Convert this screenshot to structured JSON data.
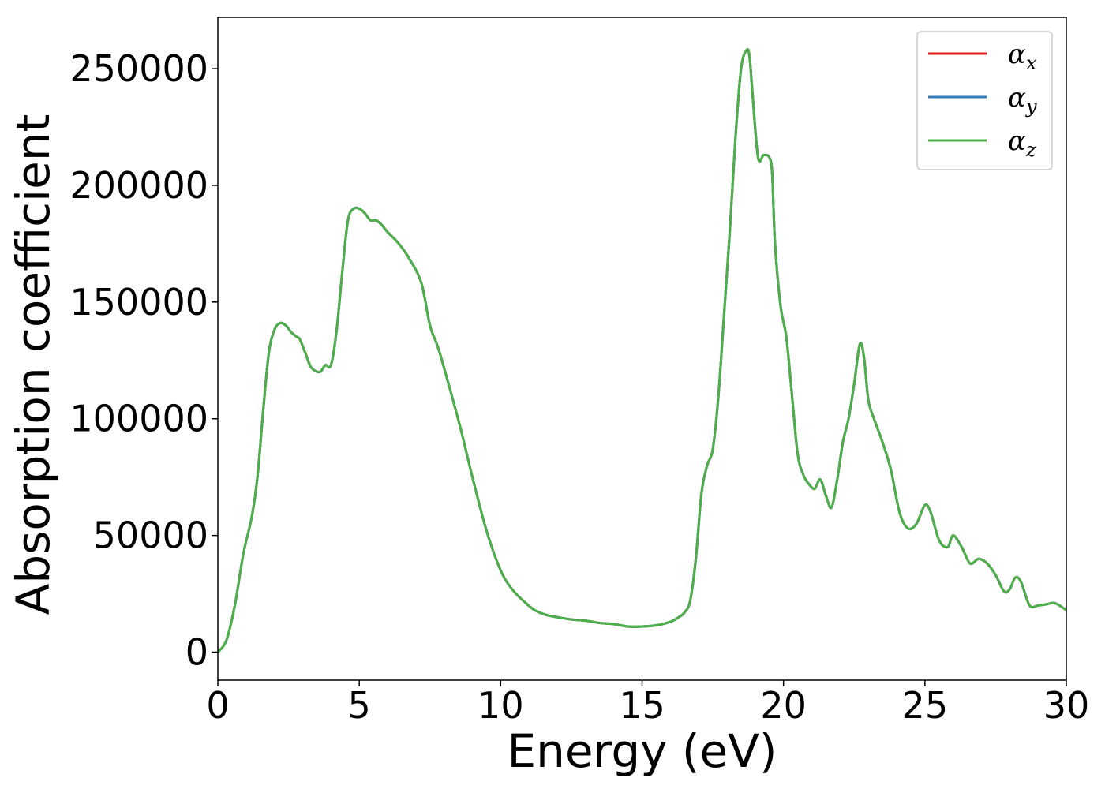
{
  "chart_data": {
    "type": "line",
    "title": "",
    "xlabel": "Energy (eV)",
    "ylabel": "Absorption coefficient",
    "xlim": [
      0,
      30
    ],
    "ylim": [
      -12000,
      272000
    ],
    "xticks": [
      0,
      5,
      10,
      15,
      20,
      25,
      30
    ],
    "yticks": [
      0,
      50000,
      100000,
      150000,
      200000,
      250000
    ],
    "grid": false,
    "legend_position": "top-right",
    "legend": [
      {
        "symbol": "α",
        "sub": "x",
        "color": "#e41a1c"
      },
      {
        "symbol": "α",
        "sub": "y",
        "color": "#377eb8"
      },
      {
        "symbol": "α",
        "sub": "z",
        "color": "#4daf4a"
      }
    ],
    "series": [
      {
        "name": "αx",
        "color": "#e41a1c"
      },
      {
        "name": "αy",
        "color": "#377eb8"
      },
      {
        "name": "αz",
        "color": "#4daf4a"
      }
    ],
    "x": [
      0,
      0.3,
      0.6,
      0.9,
      1.2,
      1.4,
      1.6,
      1.8,
      2.0,
      2.2,
      2.4,
      2.6,
      2.8,
      2.9,
      3.1,
      3.3,
      3.6,
      3.8,
      4.0,
      4.2,
      4.4,
      4.6,
      4.8,
      5.0,
      5.2,
      5.4,
      5.6,
      5.8,
      6.0,
      6.4,
      6.8,
      7.2,
      7.5,
      7.8,
      8.2,
      8.6,
      9.0,
      9.5,
      10.0,
      10.4,
      10.8,
      11.2,
      11.6,
      12.0,
      12.5,
      13.0,
      13.5,
      14.0,
      14.5,
      15.0,
      15.5,
      16.0,
      16.3,
      16.5,
      16.7,
      16.9,
      17.1,
      17.3,
      17.5,
      17.7,
      17.9,
      18.1,
      18.3,
      18.5,
      18.7,
      18.8,
      18.9,
      19.1,
      19.3,
      19.5,
      19.6,
      19.7,
      19.9,
      20.1,
      20.3,
      20.5,
      20.7,
      20.9,
      21.1,
      21.3,
      21.5,
      21.7,
      21.9,
      22.1,
      22.3,
      22.5,
      22.7,
      22.85,
      23.0,
      23.2,
      23.5,
      23.8,
      24.1,
      24.4,
      24.7,
      25.0,
      25.2,
      25.5,
      25.8,
      26.0,
      26.3,
      26.6,
      26.9,
      27.2,
      27.5,
      27.8,
      28.0,
      28.2,
      28.4,
      28.7,
      29.0,
      29.3,
      29.6,
      30.0
    ],
    "y": [
      0,
      5000,
      20000,
      42000,
      58000,
      75000,
      103000,
      128000,
      138000,
      141000,
      140000,
      137000,
      135000,
      134000,
      128000,
      122000,
      120000,
      123000,
      123000,
      138000,
      163000,
      185000,
      190000,
      190000,
      188000,
      185000,
      185000,
      183000,
      180000,
      175000,
      168000,
      158000,
      140000,
      130000,
      113000,
      95000,
      75000,
      52000,
      35000,
      27000,
      22000,
      18000,
      16000,
      15000,
      14000,
      13500,
      12500,
      12000,
      11000,
      11000,
      11500,
      13000,
      15000,
      17000,
      22000,
      40000,
      68000,
      80000,
      87000,
      110000,
      145000,
      180000,
      220000,
      250000,
      258000,
      255000,
      240000,
      212000,
      213000,
      212000,
      205000,
      175000,
      148000,
      135000,
      110000,
      85000,
      76000,
      72000,
      70000,
      74000,
      67000,
      62000,
      74000,
      90000,
      100000,
      115000,
      132000,
      126000,
      108000,
      100000,
      90000,
      78000,
      60000,
      53000,
      55000,
      63000,
      60000,
      48000,
      45000,
      50000,
      45000,
      38000,
      40000,
      38000,
      33000,
      26000,
      27000,
      32000,
      30000,
      20000,
      20000,
      20500,
      21000,
      18000
    ]
  }
}
